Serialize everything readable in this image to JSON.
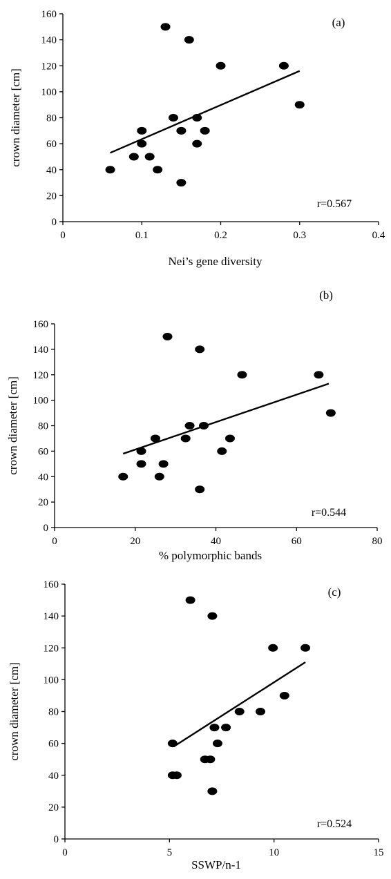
{
  "chart_data": [
    {
      "type": "scatter",
      "panel_label": "(a)",
      "xlabel": "Nei’s  gene diversity",
      "ylabel": "crown diameter [cm]",
      "xlim": [
        0,
        0.4
      ],
      "ylim": [
        0,
        160
      ],
      "xticks": [
        "0",
        "0.1",
        "0.2",
        "0.3",
        "0.4"
      ],
      "yticks": [
        "0",
        "20",
        "40",
        "60",
        "80",
        "100",
        "120",
        "140",
        "160"
      ],
      "correlation": "r=0.567",
      "grid": false,
      "trendline": {
        "x": [
          0.06,
          0.3
        ],
        "y": [
          53,
          116
        ]
      },
      "points": [
        {
          "x": 0.06,
          "y": 40
        },
        {
          "x": 0.09,
          "y": 50
        },
        {
          "x": 0.1,
          "y": 60
        },
        {
          "x": 0.1,
          "y": 70
        },
        {
          "x": 0.11,
          "y": 50
        },
        {
          "x": 0.12,
          "y": 40
        },
        {
          "x": 0.13,
          "y": 150
        },
        {
          "x": 0.14,
          "y": 80
        },
        {
          "x": 0.15,
          "y": 70
        },
        {
          "x": 0.15,
          "y": 30
        },
        {
          "x": 0.16,
          "y": 140
        },
        {
          "x": 0.17,
          "y": 80
        },
        {
          "x": 0.17,
          "y": 60
        },
        {
          "x": 0.18,
          "y": 70
        },
        {
          "x": 0.2,
          "y": 120
        },
        {
          "x": 0.28,
          "y": 120
        },
        {
          "x": 0.3,
          "y": 90
        }
      ]
    },
    {
      "type": "scatter",
      "panel_label": "(b)",
      "xlabel": "% polymorphic bands",
      "ylabel": "crown diameter [cm]",
      "xlim": [
        0,
        80
      ],
      "ylim": [
        0,
        160
      ],
      "xticks": [
        "0",
        "20",
        "40",
        "60",
        "80"
      ],
      "yticks": [
        "0",
        "20",
        "40",
        "60",
        "80",
        "100",
        "120",
        "140",
        "160"
      ],
      "correlation": "r=0.544",
      "grid": false,
      "trendline": {
        "x": [
          17,
          68
        ],
        "y": [
          58,
          113
        ]
      },
      "points": [
        {
          "x": 17,
          "y": 40
        },
        {
          "x": 21.5,
          "y": 60
        },
        {
          "x": 21.5,
          "y": 50
        },
        {
          "x": 25,
          "y": 70
        },
        {
          "x": 26,
          "y": 40
        },
        {
          "x": 27,
          "y": 50
        },
        {
          "x": 28,
          "y": 150
        },
        {
          "x": 32.5,
          "y": 70
        },
        {
          "x": 33.5,
          "y": 80
        },
        {
          "x": 36,
          "y": 140
        },
        {
          "x": 36,
          "y": 30
        },
        {
          "x": 37,
          "y": 80
        },
        {
          "x": 41.5,
          "y": 60
        },
        {
          "x": 43.5,
          "y": 70
        },
        {
          "x": 46.5,
          "y": 120
        },
        {
          "x": 65.5,
          "y": 120
        },
        {
          "x": 68.5,
          "y": 90
        }
      ]
    },
    {
      "type": "scatter",
      "panel_label": "(c)",
      "xlabel": "SSWP/n-1",
      "ylabel": "crown diameter [cm]",
      "xlim": [
        0,
        15
      ],
      "ylim": [
        0,
        160
      ],
      "xticks": [
        "0",
        "5",
        "10",
        "15"
      ],
      "yticks": [
        "0",
        "20",
        "40",
        "60",
        "80",
        "100",
        "120",
        "140",
        "160"
      ],
      "correlation": "r=0.524",
      "grid": false,
      "trendline": {
        "x": [
          5.2,
          11.5
        ],
        "y": [
          58,
          111
        ]
      },
      "points": [
        {
          "x": 5.15,
          "y": 60
        },
        {
          "x": 5.15,
          "y": 40
        },
        {
          "x": 5.35,
          "y": 40
        },
        {
          "x": 6.0,
          "y": 150
        },
        {
          "x": 6.7,
          "y": 50
        },
        {
          "x": 6.95,
          "y": 50
        },
        {
          "x": 7.05,
          "y": 140
        },
        {
          "x": 7.05,
          "y": 30
        },
        {
          "x": 7.15,
          "y": 70
        },
        {
          "x": 7.3,
          "y": 60
        },
        {
          "x": 7.7,
          "y": 70
        },
        {
          "x": 8.35,
          "y": 80
        },
        {
          "x": 9.35,
          "y": 80
        },
        {
          "x": 9.95,
          "y": 120
        },
        {
          "x": 10.5,
          "y": 90
        },
        {
          "x": 11.5,
          "y": 120
        }
      ]
    }
  ]
}
